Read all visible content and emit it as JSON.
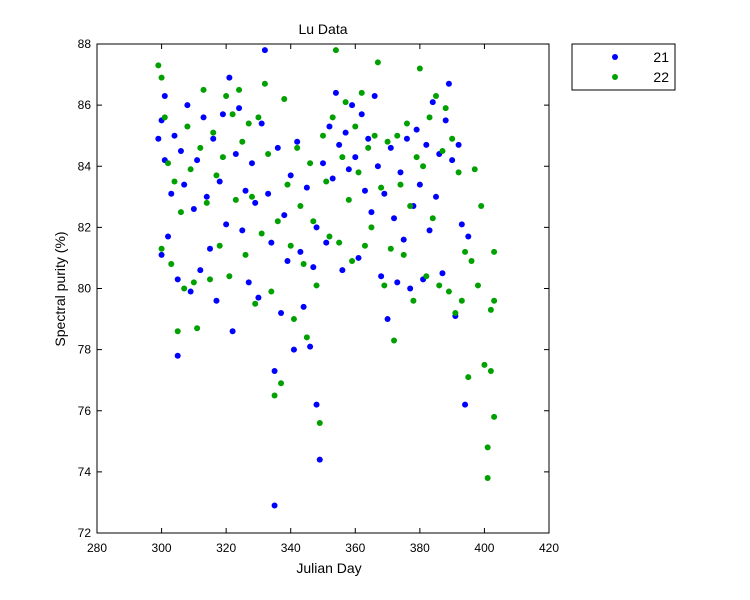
{
  "chart_data": {
    "type": "scatter",
    "title": "Lu Data",
    "xlabel": "Julian Day",
    "ylabel": "Spectral purity (%)",
    "xlim": [
      280,
      420
    ],
    "ylim": [
      72,
      88
    ],
    "xticks": [
      280,
      300,
      320,
      340,
      360,
      380,
      400,
      420
    ],
    "yticks": [
      72,
      74,
      76,
      78,
      80,
      82,
      84,
      86,
      88
    ],
    "grid": false,
    "legend_position": "outside-top-right",
    "series": [
      {
        "name": "21",
        "color": "#0000ff",
        "points": [
          [
            299,
            84.9
          ],
          [
            300,
            85.5
          ],
          [
            300,
            81.1
          ],
          [
            301,
            86.3
          ],
          [
            301,
            84.2
          ],
          [
            302,
            81.7
          ],
          [
            303,
            83.1
          ],
          [
            304,
            85.0
          ],
          [
            305,
            80.3
          ],
          [
            305,
            77.8
          ],
          [
            306,
            84.5
          ],
          [
            307,
            83.4
          ],
          [
            308,
            86.0
          ],
          [
            309,
            79.9
          ],
          [
            310,
            82.6
          ],
          [
            311,
            84.2
          ],
          [
            312,
            80.6
          ],
          [
            313,
            85.6
          ],
          [
            314,
            83.0
          ],
          [
            315,
            81.3
          ],
          [
            316,
            84.9
          ],
          [
            317,
            79.6
          ],
          [
            318,
            83.5
          ],
          [
            319,
            85.7
          ],
          [
            320,
            82.1
          ],
          [
            321,
            86.9
          ],
          [
            322,
            78.6
          ],
          [
            323,
            84.4
          ],
          [
            324,
            85.9
          ],
          [
            325,
            81.9
          ],
          [
            326,
            83.2
          ],
          [
            327,
            80.2
          ],
          [
            328,
            84.1
          ],
          [
            329,
            82.8
          ],
          [
            330,
            79.7
          ],
          [
            331,
            85.4
          ],
          [
            332,
            87.8
          ],
          [
            333,
            83.1
          ],
          [
            334,
            81.5
          ],
          [
            335,
            72.9
          ],
          [
            335,
            77.3
          ],
          [
            336,
            84.6
          ],
          [
            337,
            79.2
          ],
          [
            338,
            82.4
          ],
          [
            339,
            80.9
          ],
          [
            340,
            83.7
          ],
          [
            341,
            78.0
          ],
          [
            342,
            84.8
          ],
          [
            343,
            81.2
          ],
          [
            344,
            79.4
          ],
          [
            345,
            83.3
          ],
          [
            346,
            78.1
          ],
          [
            347,
            80.7
          ],
          [
            348,
            82.0
          ],
          [
            349,
            74.4
          ],
          [
            348,
            76.2
          ],
          [
            350,
            84.1
          ],
          [
            351,
            81.5
          ],
          [
            352,
            85.3
          ],
          [
            353,
            83.6
          ],
          [
            354,
            86.4
          ],
          [
            355,
            84.7
          ],
          [
            356,
            80.6
          ],
          [
            357,
            85.1
          ],
          [
            358,
            83.9
          ],
          [
            359,
            86.0
          ],
          [
            360,
            84.3
          ],
          [
            361,
            81.0
          ],
          [
            362,
            85.7
          ],
          [
            363,
            83.2
          ],
          [
            364,
            84.9
          ],
          [
            365,
            82.5
          ],
          [
            366,
            86.3
          ],
          [
            367,
            84.0
          ],
          [
            368,
            80.4
          ],
          [
            369,
            83.1
          ],
          [
            370,
            79.0
          ],
          [
            371,
            84.6
          ],
          [
            372,
            82.3
          ],
          [
            373,
            80.2
          ],
          [
            374,
            83.8
          ],
          [
            375,
            81.6
          ],
          [
            376,
            84.9
          ],
          [
            377,
            80.0
          ],
          [
            378,
            82.7
          ],
          [
            379,
            85.2
          ],
          [
            380,
            83.4
          ],
          [
            381,
            80.3
          ],
          [
            382,
            84.7
          ],
          [
            383,
            81.9
          ],
          [
            384,
            86.1
          ],
          [
            385,
            83.0
          ],
          [
            386,
            84.4
          ],
          [
            387,
            80.5
          ],
          [
            388,
            85.5
          ],
          [
            389,
            86.7
          ],
          [
            390,
            84.2
          ],
          [
            391,
            79.1
          ],
          [
            392,
            84.7
          ],
          [
            393,
            82.1
          ],
          [
            394,
            76.2
          ],
          [
            395,
            81.7
          ]
        ]
      },
      {
        "name": "22",
        "color": "#00a000",
        "points": [
          [
            299,
            87.3
          ],
          [
            300,
            86.9
          ],
          [
            300,
            81.3
          ],
          [
            301,
            85.6
          ],
          [
            302,
            84.1
          ],
          [
            303,
            80.8
          ],
          [
            304,
            83.5
          ],
          [
            305,
            78.6
          ],
          [
            306,
            82.5
          ],
          [
            307,
            80.0
          ],
          [
            308,
            85.3
          ],
          [
            309,
            83.9
          ],
          [
            310,
            80.2
          ],
          [
            311,
            78.7
          ],
          [
            312,
            84.6
          ],
          [
            313,
            86.5
          ],
          [
            314,
            82.8
          ],
          [
            315,
            80.3
          ],
          [
            316,
            85.1
          ],
          [
            317,
            83.7
          ],
          [
            318,
            81.4
          ],
          [
            319,
            84.3
          ],
          [
            320,
            86.3
          ],
          [
            321,
            80.4
          ],
          [
            322,
            85.7
          ],
          [
            323,
            82.9
          ],
          [
            324,
            86.5
          ],
          [
            325,
            84.8
          ],
          [
            326,
            81.1
          ],
          [
            327,
            85.4
          ],
          [
            328,
            83.0
          ],
          [
            329,
            79.5
          ],
          [
            330,
            85.6
          ],
          [
            331,
            81.8
          ],
          [
            332,
            86.7
          ],
          [
            333,
            84.4
          ],
          [
            334,
            79.9
          ],
          [
            335,
            76.5
          ],
          [
            336,
            82.2
          ],
          [
            337,
            76.9
          ],
          [
            338,
            86.2
          ],
          [
            339,
            83.4
          ],
          [
            340,
            81.4
          ],
          [
            341,
            79.0
          ],
          [
            342,
            84.6
          ],
          [
            343,
            82.7
          ],
          [
            344,
            80.8
          ],
          [
            345,
            78.4
          ],
          [
            346,
            84.1
          ],
          [
            347,
            82.2
          ],
          [
            348,
            80.1
          ],
          [
            349,
            75.6
          ],
          [
            350,
            85.0
          ],
          [
            351,
            83.5
          ],
          [
            352,
            81.7
          ],
          [
            353,
            85.6
          ],
          [
            354,
            87.8
          ],
          [
            355,
            81.5
          ],
          [
            356,
            84.3
          ],
          [
            357,
            86.1
          ],
          [
            358,
            82.9
          ],
          [
            359,
            80.9
          ],
          [
            360,
            85.3
          ],
          [
            361,
            83.8
          ],
          [
            362,
            86.4
          ],
          [
            363,
            81.4
          ],
          [
            364,
            84.6
          ],
          [
            365,
            82.0
          ],
          [
            366,
            85.0
          ],
          [
            367,
            87.4
          ],
          [
            368,
            83.3
          ],
          [
            369,
            80.1
          ],
          [
            370,
            84.8
          ],
          [
            371,
            81.3
          ],
          [
            372,
            78.3
          ],
          [
            373,
            85.0
          ],
          [
            374,
            83.4
          ],
          [
            375,
            81.1
          ],
          [
            376,
            85.4
          ],
          [
            377,
            82.7
          ],
          [
            378,
            79.6
          ],
          [
            379,
            84.3
          ],
          [
            380,
            87.2
          ],
          [
            381,
            84.0
          ],
          [
            382,
            80.4
          ],
          [
            383,
            85.6
          ],
          [
            384,
            82.3
          ],
          [
            385,
            86.3
          ],
          [
            386,
            80.1
          ],
          [
            387,
            84.5
          ],
          [
            388,
            85.9
          ],
          [
            389,
            79.9
          ],
          [
            390,
            84.9
          ],
          [
            391,
            79.2
          ],
          [
            392,
            83.8
          ],
          [
            393,
            79.6
          ],
          [
            394,
            81.2
          ],
          [
            395,
            77.1
          ],
          [
            396,
            80.9
          ],
          [
            397,
            83.9
          ],
          [
            398,
            80.1
          ],
          [
            399,
            82.7
          ],
          [
            400,
            77.5
          ],
          [
            401,
            74.8
          ],
          [
            401,
            73.8
          ],
          [
            402,
            79.3
          ],
          [
            402,
            77.3
          ],
          [
            403,
            81.2
          ],
          [
            403,
            75.8
          ],
          [
            403,
            79.6
          ]
        ]
      }
    ]
  }
}
